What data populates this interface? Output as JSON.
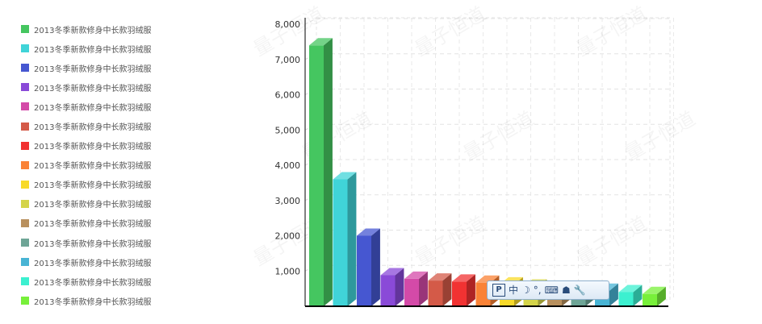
{
  "chart_data": {
    "type": "bar",
    "categories": [
      "",
      "",
      "",
      "",
      "",
      "",
      "",
      "",
      "",
      "",
      "",
      "",
      "",
      "",
      ""
    ],
    "series": [
      {
        "name": "2013冬季新款修身中长款羽绒服",
        "value": 7400,
        "color": "#45c660"
      },
      {
        "name": "2013冬季新款修身中长款羽绒服",
        "value": 3600,
        "color": "#40d4d8"
      },
      {
        "name": "2013冬季新款修身中长款羽绒服",
        "value": 2000,
        "color": "#4657d1"
      },
      {
        "name": "2013冬季新款修身中长款羽绒服",
        "value": 880,
        "color": "#8a4ad8"
      },
      {
        "name": "2013冬季新款修身中长款羽绒服",
        "value": 780,
        "color": "#d44aa8"
      },
      {
        "name": "2013冬季新款修身中长款羽绒服",
        "value": 730,
        "color": "#d45a48"
      },
      {
        "name": "2013冬季新款修身中长款羽绒服",
        "value": 700,
        "color": "#f13232"
      },
      {
        "name": "2013冬季新款修身中长款羽绒服",
        "value": 670,
        "color": "#fa8236"
      },
      {
        "name": "2013冬季新款修身中长款羽绒服",
        "value": 620,
        "color": "#f8da2a"
      },
      {
        "name": "2013冬季新款修身中长款羽绒服",
        "value": 560,
        "color": "#d4d44a"
      },
      {
        "name": "2013冬季新款修身中长款羽绒服",
        "value": 520,
        "color": "#b8905e"
      },
      {
        "name": "2013冬季新款修身中长款羽绒服",
        "value": 480,
        "color": "#6ea596"
      },
      {
        "name": "2013冬季新款修身中长款羽绒服",
        "value": 440,
        "color": "#48b4d4"
      },
      {
        "name": "2013冬季新款修身中长款羽绒服",
        "value": 400,
        "color": "#3cf0d0"
      },
      {
        "name": "2013冬季新款修身中长款羽绒服",
        "value": 350,
        "color": "#78f03a"
      }
    ],
    "y_ticks": [
      "1,000",
      "2,000",
      "3,000",
      "4,000",
      "5,000",
      "6,000",
      "7,000",
      "8,000"
    ],
    "ylim": [
      0,
      8000
    ],
    "grid": true,
    "legend_position": "left",
    "watermark": "量子恒道"
  },
  "ime_toolbar": {
    "logo": "P",
    "mode": "中",
    "items": [
      "☽",
      "°,",
      "⌨",
      "☗",
      "🔧"
    ]
  }
}
